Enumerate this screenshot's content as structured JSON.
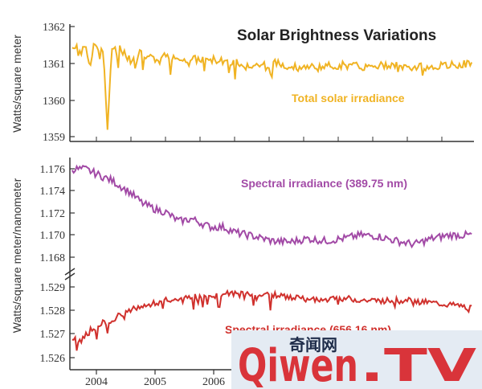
{
  "chart_data": [
    {
      "type": "line",
      "title": "Solar Brightness Variations",
      "ylabel": "Watts/square meter",
      "series_label": "Total solar irradiance",
      "color": "#f0b323",
      "x_range": [
        2003.85,
        2012.95
      ],
      "ylim": [
        1359,
        1362
      ],
      "yticks": [
        "1362",
        "1361",
        "1360",
        "1359"
      ],
      "series": [
        {
          "name": "Total solar irradiance",
          "x": [
            2003.9,
            2004.0,
            2004.1,
            2004.2,
            2004.3,
            2004.4,
            2004.5,
            2004.6,
            2004.7,
            2004.8,
            2004.9,
            2005.0,
            2005.2,
            2005.4,
            2005.6,
            2005.8,
            2006.0,
            2006.5,
            2007.0,
            2007.5,
            2008.0,
            2008.5,
            2009.0,
            2009.5,
            2010.0,
            2010.5,
            2011.0,
            2011.5,
            2012.0,
            2012.5,
            2012.9
          ],
          "values": [
            1361.4,
            1361.5,
            1361.2,
            1361.5,
            1360.9,
            1361.5,
            1361.4,
            1361.3,
            1359.3,
            1361.5,
            1361.3,
            1361.4,
            1361.1,
            1361.3,
            1361.2,
            1361.0,
            1361.2,
            1361.1,
            1361.1,
            1361.05,
            1360.95,
            1361.0,
            1360.9,
            1360.9,
            1360.95,
            1360.9,
            1360.95,
            1360.9,
            1360.9,
            1360.95,
            1361.0
          ]
        }
      ]
    },
    {
      "type": "line",
      "ylabel": "Watts/square meter/nanometer",
      "series_label": "Spectral irradiance (389.75 nm)",
      "color": "#a24aa6",
      "x_range": [
        2003.85,
        2012.95
      ],
      "ylim": [
        1.1672,
        1.1765
      ],
      "yticks": [
        "1.176",
        "1.174",
        "1.172",
        "1.170",
        "1.168"
      ],
      "series": [
        {
          "name": "Spectral irradiance (389.75 nm)",
          "x": [
            2003.9,
            2004.2,
            2004.5,
            2004.8,
            2005.0,
            2005.2,
            2005.5,
            2005.8,
            2006.0,
            2006.3,
            2006.6,
            2007.0,
            2007.3,
            2007.6,
            2008.0,
            2008.4,
            2008.8,
            2009.2,
            2009.6,
            2010.0,
            2010.4,
            2010.8,
            2011.2,
            2011.6,
            2012.0,
            2012.4,
            2012.9
          ],
          "values": [
            1.1755,
            1.1755,
            1.175,
            1.1745,
            1.174,
            1.1735,
            1.1725,
            1.172,
            1.1718,
            1.171,
            1.1712,
            1.1705,
            1.1705,
            1.17,
            1.1697,
            1.1693,
            1.1692,
            1.1695,
            1.1693,
            1.1695,
            1.1698,
            1.1697,
            1.1693,
            1.169,
            1.1695,
            1.1698,
            1.1698
          ]
        }
      ]
    },
    {
      "type": "line",
      "ylabel": "Watts/square meter/nanometer",
      "series_label": "Spectral irradiance (656.16 nm)",
      "color": "#d0312d",
      "x_range": [
        2003.85,
        2012.95
      ],
      "ylim": [
        1.5257,
        1.5294
      ],
      "yticks": [
        "1.529",
        "1.528",
        "1.527",
        "1.526"
      ],
      "xticks": [
        "2004",
        "2005",
        "2006"
      ],
      "series": [
        {
          "name": "Spectral irradiance (656.16 nm)",
          "x": [
            2003.9,
            2004.1,
            2004.3,
            2004.5,
            2004.7,
            2005.0,
            2005.3,
            2005.6,
            2006.0,
            2006.3,
            2006.6,
            2007.0,
            2007.4,
            2007.8,
            2008.2,
            2008.6,
            2009.0,
            2009.5,
            2010.0,
            2010.5,
            2011.0,
            2011.5,
            2012.0,
            2012.5,
            2012.9
          ],
          "values": [
            1.5268,
            1.5268,
            1.5272,
            1.5275,
            1.5276,
            1.5279,
            1.5282,
            1.5283,
            1.5285,
            1.5286,
            1.5287,
            1.5287,
            1.5288,
            1.5288,
            1.5288,
            1.5287,
            1.5286,
            1.5285,
            1.5286,
            1.5285,
            1.5285,
            1.5285,
            1.5284,
            1.5283,
            1.5282
          ]
        }
      ]
    }
  ],
  "watermark": {
    "brand": "Qiwen",
    "suffix": ".TV",
    "chinese": "奇闻网",
    "color": "#d9343a",
    "background": "#e4ebf3"
  }
}
